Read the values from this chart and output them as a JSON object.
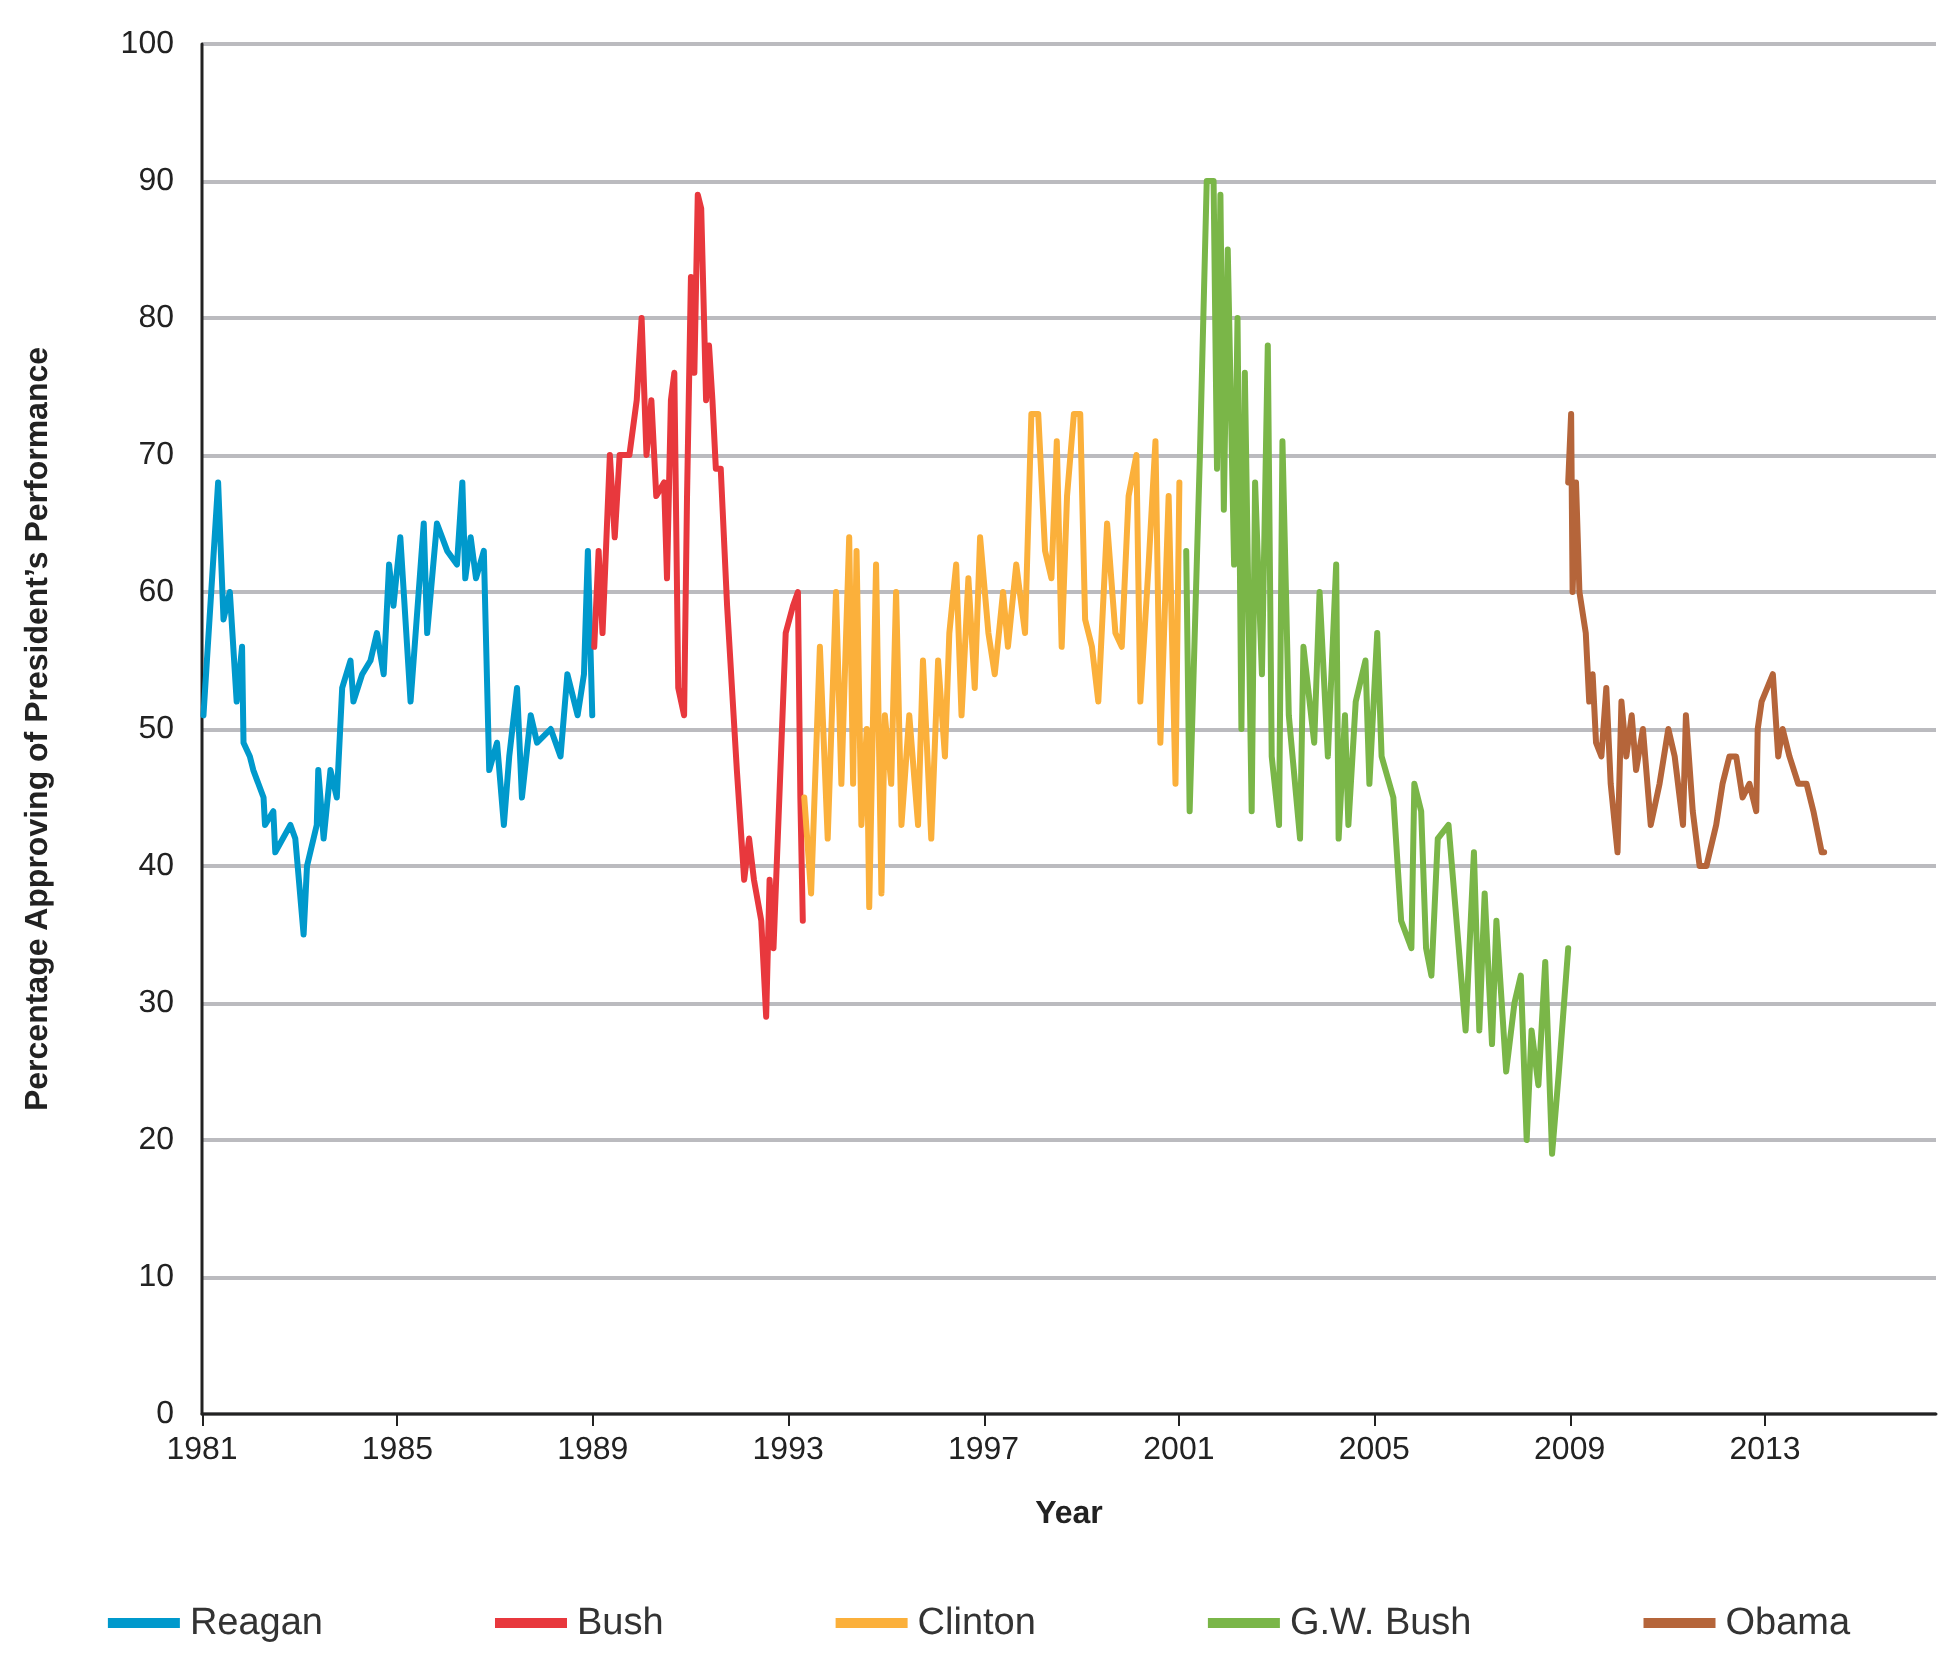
{
  "chart_data": {
    "type": "line",
    "xlabel": "Year",
    "ylabel": "Percentage Approving of President’s Performance",
    "xlim": [
      1981,
      2016.5
    ],
    "xticks": [
      1981,
      1985,
      1989,
      1993,
      1997,
      2001,
      2005,
      2009,
      2013
    ],
    "ylim": [
      0,
      100
    ],
    "yticks": [
      0,
      10,
      20,
      30,
      40,
      50,
      60,
      70,
      80,
      90,
      100
    ],
    "grid": "y",
    "legend": "bottom",
    "marker": "none",
    "line_style": "solid",
    "series": [
      {
        "name": "Reagan",
        "color": "#0099cc",
        "x": [
          1981.03,
          1981.33,
          1981.44,
          1981.57,
          1981.64,
          1981.71,
          1981.82,
          1981.85,
          1981.98,
          1982.05,
          1982.26,
          1982.29,
          1982.46,
          1982.5,
          1982.81,
          1982.91,
          1983.08,
          1983.15,
          1983.35,
          1983.38,
          1983.49,
          1983.63,
          1983.76,
          1983.87,
          1984.04,
          1984.1,
          1984.28,
          1984.45,
          1984.58,
          1984.72,
          1984.83,
          1984.92,
          1985.06,
          1985.27,
          1985.54,
          1985.61,
          1985.81,
          1986.02,
          1986.22,
          1986.33,
          1986.39,
          1986.5,
          1986.61,
          1986.77,
          1986.88,
          1987.04,
          1987.18,
          1987.29,
          1987.45,
          1987.55,
          1987.73,
          1987.86,
          1988.14,
          1988.34,
          1988.48,
          1988.69,
          1988.82,
          1988.9,
          1988.99
        ],
        "values": [
          51,
          68,
          58,
          60,
          56,
          52,
          56,
          49,
          48,
          47,
          45,
          43,
          44,
          41,
          43,
          42,
          35,
          40,
          43,
          47,
          42,
          47,
          45,
          53,
          55,
          52,
          54,
          55,
          57,
          54,
          62,
          59,
          64,
          52,
          65,
          57,
          65,
          63,
          62,
          68,
          61,
          64,
          61,
          63,
          47,
          49,
          43,
          48,
          53,
          45,
          51,
          49,
          50,
          48,
          54,
          51,
          54,
          63,
          51
        ]
      },
      {
        "name": "Bush",
        "color": "#e8383d",
        "x": [
          1989.03,
          1989.12,
          1989.2,
          1989.35,
          1989.45,
          1989.55,
          1989.75,
          1989.9,
          1990.0,
          1990.1,
          1990.2,
          1990.3,
          1990.46,
          1990.52,
          1990.6,
          1990.67,
          1990.75,
          1990.87,
          1990.93,
          1991.01,
          1991.08,
          1991.15,
          1991.22,
          1991.32,
          1991.38,
          1991.45,
          1991.52,
          1991.62,
          1991.75,
          1991.95,
          1992.1,
          1992.2,
          1992.3,
          1992.45,
          1992.55,
          1992.62,
          1992.7,
          1992.82,
          1992.95,
          1993.1,
          1993.2,
          1993.25,
          1993.3
        ],
        "values": [
          56,
          63,
          57,
          70,
          64,
          70,
          70,
          74,
          80,
          70,
          74,
          67,
          68,
          61,
          74,
          76,
          53,
          51,
          67,
          83,
          76,
          89,
          88,
          74,
          78,
          74,
          69,
          69,
          59,
          47,
          39,
          42,
          39,
          36,
          29,
          39,
          34,
          45,
          57,
          59,
          60,
          45,
          36
        ]
      },
      {
        "name": "Clinton",
        "color": "#fbb03b",
        "x": [
          1993.33,
          1993.47,
          1993.65,
          1993.81,
          1993.98,
          1994.09,
          1994.25,
          1994.33,
          1994.4,
          1994.5,
          1994.61,
          1994.66,
          1994.8,
          1994.91,
          1994.98,
          1995.11,
          1995.21,
          1995.32,
          1995.48,
          1995.66,
          1995.76,
          1995.93,
          1996.07,
          1996.21,
          1996.3,
          1996.44,
          1996.55,
          1996.69,
          1996.82,
          1996.93,
          1997.1,
          1997.23,
          1997.4,
          1997.5,
          1997.67,
          1997.85,
          1997.98,
          1998.12,
          1998.26,
          1998.39,
          1998.5,
          1998.6,
          1998.71,
          1998.85,
          1998.98,
          1999.08,
          1999.22,
          1999.35,
          1999.53,
          1999.7,
          1999.83,
          1999.97,
          2000.13,
          2000.21,
          2000.38,
          2000.52,
          2000.62,
          2000.79,
          2000.93,
          2001.01
        ],
        "values": [
          45,
          38,
          56,
          42,
          60,
          46,
          64,
          46,
          63,
          43,
          50,
          37,
          62,
          38,
          51,
          46,
          60,
          43,
          51,
          43,
          55,
          42,
          55,
          48,
          57,
          62,
          51,
          61,
          53,
          64,
          57,
          54,
          60,
          56,
          62,
          57,
          73,
          73,
          63,
          61,
          71,
          56,
          67,
          73,
          73,
          58,
          56,
          52,
          65,
          57,
          56,
          67,
          70,
          52,
          62,
          71,
          49,
          67,
          46,
          68
        ]
      },
      {
        "name": "G.W. Bush",
        "color": "#7ab648",
        "x": [
          2001.15,
          2001.22,
          2001.43,
          2001.57,
          2001.71,
          2001.78,
          2001.85,
          2001.92,
          2002.0,
          2002.13,
          2002.2,
          2002.28,
          2002.35,
          2002.49,
          2002.56,
          2002.7,
          2002.82,
          2002.9,
          2003.05,
          2003.12,
          2003.25,
          2003.48,
          2003.55,
          2003.77,
          2003.88,
          2004.05,
          2004.22,
          2004.27,
          2004.4,
          2004.47,
          2004.62,
          2004.82,
          2004.9,
          2005.06,
          2005.15,
          2005.39,
          2005.55,
          2005.76,
          2005.82,
          2005.96,
          2006.06,
          2006.17,
          2006.3,
          2006.52,
          2006.66,
          2006.87,
          2007.04,
          2007.15,
          2007.26,
          2007.41,
          2007.5,
          2007.7,
          2007.87,
          2008.0,
          2008.12,
          2008.22,
          2008.36,
          2008.5,
          2008.64,
          2008.78,
          2008.97
        ],
        "values": [
          63,
          44,
          70,
          90,
          90,
          69,
          89,
          66,
          85,
          62,
          80,
          50,
          76,
          44,
          68,
          54,
          78,
          48,
          43,
          71,
          51,
          42,
          56,
          49,
          60,
          48,
          62,
          42,
          51,
          43,
          52,
          55,
          46,
          57,
          48,
          45,
          36,
          34,
          46,
          44,
          34,
          32,
          42,
          43,
          37,
          28,
          41,
          28,
          38,
          27,
          36,
          25,
          30,
          32,
          20,
          28,
          24,
          33,
          19,
          25,
          34
        ]
      },
      {
        "name": "Obama",
        "color": "#b5653a",
        "x": [
          2008.97,
          2009.03,
          2009.06,
          2009.13,
          2009.2,
          2009.33,
          2009.4,
          2009.47,
          2009.54,
          2009.65,
          2009.75,
          2009.84,
          2009.98,
          2010.06,
          2010.16,
          2010.27,
          2010.36,
          2010.5,
          2010.66,
          2010.84,
          2011.02,
          2011.15,
          2011.32,
          2011.38,
          2011.52,
          2011.66,
          2011.8,
          2012.0,
          2012.13,
          2012.27,
          2012.41,
          2012.54,
          2012.68,
          2012.82,
          2012.85,
          2012.93,
          2013.16,
          2013.27,
          2013.36,
          2013.5,
          2013.68,
          2013.85,
          2013.99,
          2014.16,
          2014.21
        ],
        "values": [
          68,
          73,
          60,
          68,
          60,
          57,
          52,
          54,
          49,
          48,
          53,
          46,
          41,
          52,
          48,
          51,
          47,
          50,
          43,
          46,
          50,
          48,
          43,
          51,
          44,
          40,
          40,
          43,
          46,
          48,
          48,
          45,
          46,
          44,
          50,
          52,
          54,
          48,
          50,
          48,
          46,
          46,
          44,
          41,
          41
        ]
      }
    ]
  }
}
